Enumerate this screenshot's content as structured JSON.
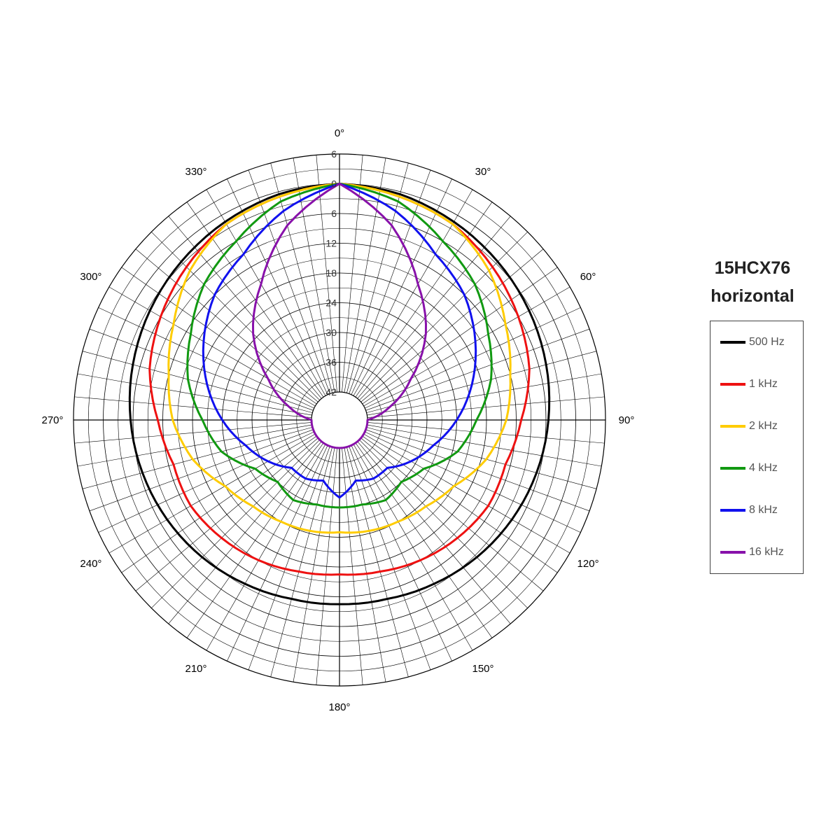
{
  "title": {
    "line1": "15HCX76",
    "line2": "horizontal"
  },
  "chart_data": {
    "type": "polar",
    "angle_labels": [
      "0°",
      "30°",
      "60°",
      "90°",
      "120°",
      "150°",
      "180°",
      "210°",
      "240°",
      "270°",
      "300°",
      "330°"
    ],
    "angle_values": [
      0,
      30,
      60,
      90,
      120,
      150,
      180,
      210,
      240,
      270,
      300,
      330
    ],
    "angle_grid_step": 5,
    "radial_axis": {
      "unit": "dB",
      "max": 6,
      "min": -42,
      "ring_step": 6
    },
    "ring_labels": [
      "6",
      "0",
      "6",
      "12",
      "18",
      "24",
      "30",
      "36",
      "42"
    ],
    "ring_label_values": [
      6,
      0,
      -6,
      -12,
      -18,
      -24,
      -30,
      -36,
      -42
    ],
    "angles": [
      0,
      15,
      30,
      45,
      60,
      75,
      90,
      105,
      120,
      135,
      150,
      165,
      180
    ],
    "series": [
      {
        "name": "500 Hz",
        "color": "#000000",
        "values": [
          0,
          -0.5,
          -1.5,
          -2.5,
          -3.5,
          -4.5,
          -5.5,
          -6.5,
          -7.5,
          -8.5,
          -9.5,
          -10.3,
          -10.5
        ]
      },
      {
        "name": "1 kHz",
        "color": "#ee1111",
        "values": [
          0,
          -1,
          -2,
          -4,
          -6,
          -8,
          -11,
          -13,
          -13,
          -14,
          -15,
          -16,
          -16.5
        ]
      },
      {
        "name": "2 kHz",
        "color": "#ffcc00",
        "values": [
          0,
          -1,
          -2,
          -5,
          -9,
          -12,
          -14,
          -17,
          -21,
          -23,
          -24,
          -24.5,
          -25
        ]
      },
      {
        "name": "4 kHz",
        "color": "#119911",
        "values": [
          0,
          -2,
          -6,
          -9,
          -13,
          -16,
          -20,
          -23,
          -28,
          -30,
          -29,
          -30,
          -30
        ]
      },
      {
        "name": "8 kHz",
        "color": "#1111ee",
        "values": [
          0,
          -4,
          -9,
          -12,
          -16,
          -20,
          -24,
          -28,
          -31,
          -34,
          -34,
          -35,
          -32
        ]
      },
      {
        "name": "16 kHz",
        "color": "#8811aa",
        "values": [
          0,
          -7,
          -16,
          -23,
          -31,
          -37,
          -42,
          -43,
          -43,
          -44,
          -44,
          -44,
          -44
        ]
      }
    ],
    "legend_position": "right"
  }
}
